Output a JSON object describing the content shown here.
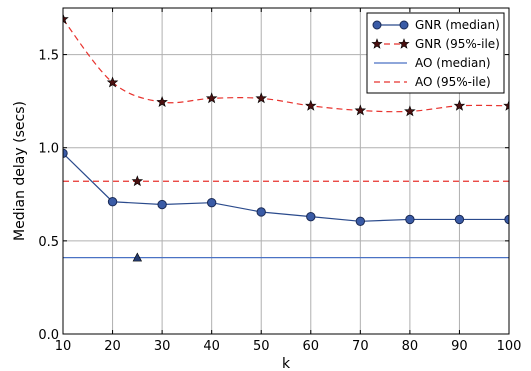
{
  "chart_data": {
    "type": "line",
    "xlabel": "k",
    "ylabel": "Median delay (secs)",
    "xlim": [
      10,
      100
    ],
    "ylim": [
      0.0,
      1.75
    ],
    "xticks": [
      "10",
      "20",
      "30",
      "40",
      "50",
      "60",
      "70",
      "80",
      "90",
      "100"
    ],
    "yticks": [
      "0.0",
      "0.5",
      "1.0",
      "1.5"
    ],
    "grid": true,
    "legend_position": "top-right",
    "x": [
      10,
      20,
      30,
      40,
      50,
      60,
      70,
      80,
      90,
      100
    ],
    "series": [
      {
        "name": "GNR (median)",
        "style": "line-marker-circle",
        "color": "#2a4a8c",
        "values": [
          0.97,
          0.71,
          0.695,
          0.705,
          0.655,
          0.63,
          0.605,
          0.615,
          0.615,
          0.615
        ]
      },
      {
        "name": "GNR (95%-ile)",
        "style": "dashed-marker-star",
        "color": "#e8332e",
        "values": [
          1.69,
          1.35,
          1.245,
          1.265,
          1.265,
          1.225,
          1.2,
          1.195,
          1.225,
          1.225
        ]
      },
      {
        "name": "AO (median)",
        "style": "hline",
        "color": "#4a72c4",
        "value": 0.41
      },
      {
        "name": "AO (95%-ile)",
        "style": "dashed-hline",
        "color": "#e8332e",
        "value": 0.82
      }
    ],
    "annotations": [
      {
        "marker": "star",
        "x": 25,
        "y": 0.82
      },
      {
        "marker": "triangle",
        "x": 25,
        "y": 0.41
      }
    ]
  }
}
